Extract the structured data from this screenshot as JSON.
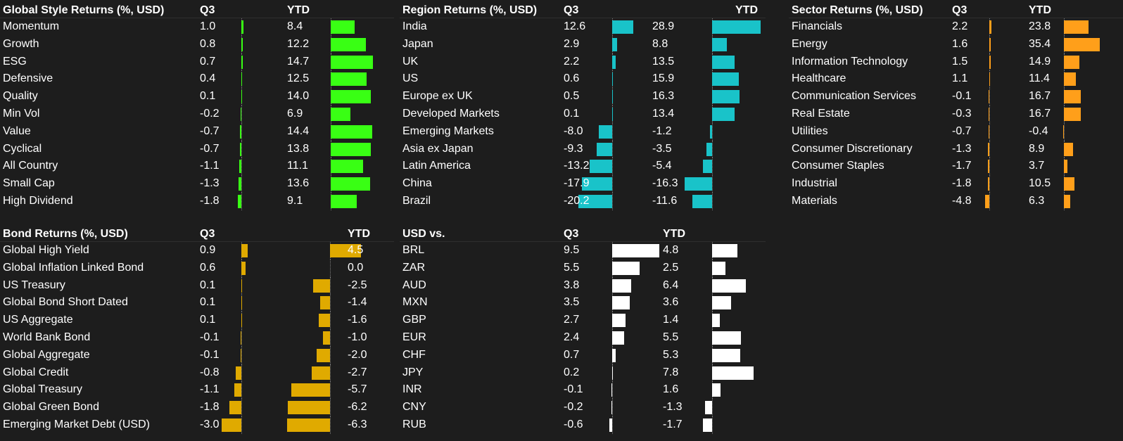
{
  "colors": {
    "style": "#39ff14",
    "region": "#19c3c9",
    "sector": "#ff9f1a",
    "bond": "#e0aa00",
    "usd": "#ffffff",
    "background": "#1d1d1d"
  },
  "chart_data": [
    {
      "type": "table",
      "id": "style",
      "title": "Global Style Returns (%, USD)",
      "columns": [
        "Q3",
        "YTD"
      ],
      "rows": [
        {
          "label": "Momentum",
          "q3": 1.0,
          "ytd": 8.4
        },
        {
          "label": "Growth",
          "q3": 0.8,
          "ytd": 12.2
        },
        {
          "label": "ESG",
          "q3": 0.7,
          "ytd": 14.7
        },
        {
          "label": "Defensive",
          "q3": 0.4,
          "ytd": 12.5
        },
        {
          "label": "Quality",
          "q3": 0.1,
          "ytd": 14.0
        },
        {
          "label": "Min Vol",
          "q3": -0.2,
          "ytd": 6.9
        },
        {
          "label": "Value",
          "q3": -0.7,
          "ytd": 14.4
        },
        {
          "label": "Cyclical",
          "q3": -0.7,
          "ytd": 13.8
        },
        {
          "label": "All Country",
          "q3": -1.1,
          "ytd": 11.1
        },
        {
          "label": "Small Cap",
          "q3": -1.3,
          "ytd": 13.6
        },
        {
          "label": "High Dividend",
          "q3": -1.8,
          "ytd": 9.1
        }
      ]
    },
    {
      "type": "table",
      "id": "region",
      "title": "Region Returns (%, USD)",
      "columns": [
        "Q3",
        "YTD"
      ],
      "rows": [
        {
          "label": "India",
          "q3": 12.6,
          "ytd": 28.9
        },
        {
          "label": "Japan",
          "q3": 2.9,
          "ytd": 8.8
        },
        {
          "label": "UK",
          "q3": 2.2,
          "ytd": 13.5
        },
        {
          "label": "US",
          "q3": 0.6,
          "ytd": 15.9
        },
        {
          "label": "Europe ex UK",
          "q3": 0.5,
          "ytd": 16.3
        },
        {
          "label": "Developed Markets",
          "q3": 0.1,
          "ytd": 13.4
        },
        {
          "label": "Emerging Markets",
          "q3": -8.0,
          "ytd": -1.2
        },
        {
          "label": "Asia ex Japan",
          "q3": -9.3,
          "ytd": -3.5
        },
        {
          "label": "Latin America",
          "q3": -13.2,
          "ytd": -5.4
        },
        {
          "label": "China",
          "q3": -17.9,
          "ytd": -16.3
        },
        {
          "label": "Brazil",
          "q3": -20.2,
          "ytd": -11.6
        }
      ]
    },
    {
      "type": "table",
      "id": "sector",
      "title": "Sector Returns (%, USD)",
      "columns": [
        "Q3",
        "YTD"
      ],
      "rows": [
        {
          "label": "Financials",
          "q3": 2.2,
          "ytd": 23.8
        },
        {
          "label": "Energy",
          "q3": 1.6,
          "ytd": 35.4
        },
        {
          "label": "Information Technology",
          "q3": 1.5,
          "ytd": 14.9
        },
        {
          "label": "Healthcare",
          "q3": 1.1,
          "ytd": 11.4
        },
        {
          "label": "Communication Services",
          "q3": -0.1,
          "ytd": 16.7
        },
        {
          "label": "Real Estate",
          "q3": -0.3,
          "ytd": 16.7
        },
        {
          "label": "Utilities",
          "q3": -0.7,
          "ytd": -0.4
        },
        {
          "label": "Consumer Discretionary",
          "q3": -1.3,
          "ytd": 8.9
        },
        {
          "label": "Consumer Staples",
          "q3": -1.7,
          "ytd": 3.7
        },
        {
          "label": "Industrial",
          "q3": -1.8,
          "ytd": 10.5
        },
        {
          "label": "Materials",
          "q3": -4.8,
          "ytd": 6.3
        }
      ]
    },
    {
      "type": "table",
      "id": "bond",
      "title": "Bond Returns (%, USD)",
      "columns": [
        "Q3",
        "YTD"
      ],
      "rows": [
        {
          "label": "Global High Yield",
          "q3": 0.9,
          "ytd": 4.5
        },
        {
          "label": "Global Inflation Linked Bond",
          "q3": 0.6,
          "ytd": 0.0
        },
        {
          "label": "US Treasury",
          "q3": 0.1,
          "ytd": -2.5
        },
        {
          "label": "Global Bond Short Dated",
          "q3": 0.1,
          "ytd": -1.4
        },
        {
          "label": "US Aggregate",
          "q3": 0.1,
          "ytd": -1.6
        },
        {
          "label": "World Bank Bond",
          "q3": -0.1,
          "ytd": -1.0
        },
        {
          "label": "Global Aggregate",
          "q3": -0.1,
          "ytd": -2.0
        },
        {
          "label": "Global Credit",
          "q3": -0.8,
          "ytd": -2.7
        },
        {
          "label": "Global Treasury",
          "q3": -1.1,
          "ytd": -5.7
        },
        {
          "label": "Global Green Bond",
          "q3": -1.8,
          "ytd": -6.2
        },
        {
          "label": "Emerging Market Debt (USD)",
          "q3": -3.0,
          "ytd": -6.3
        }
      ]
    },
    {
      "type": "table",
      "id": "usd",
      "title": "USD  vs.",
      "columns": [
        "Q3",
        "YTD"
      ],
      "rows": [
        {
          "label": "BRL",
          "q3": 9.5,
          "ytd": 4.8
        },
        {
          "label": "ZAR",
          "q3": 5.5,
          "ytd": 2.5
        },
        {
          "label": "AUD",
          "q3": 3.8,
          "ytd": 6.4
        },
        {
          "label": "MXN",
          "q3": 3.5,
          "ytd": 3.6
        },
        {
          "label": "GBP",
          "q3": 2.7,
          "ytd": 1.4
        },
        {
          "label": "EUR",
          "q3": 2.4,
          "ytd": 5.5
        },
        {
          "label": "CHF",
          "q3": 0.7,
          "ytd": 5.3
        },
        {
          "label": "JPY",
          "q3": 0.2,
          "ytd": 7.8
        },
        {
          "label": "INR",
          "q3": -0.1,
          "ytd": 1.6
        },
        {
          "label": "CNY",
          "q3": -0.2,
          "ytd": -1.3
        },
        {
          "label": "RUB",
          "q3": -0.6,
          "ytd": -1.7
        }
      ]
    }
  ]
}
